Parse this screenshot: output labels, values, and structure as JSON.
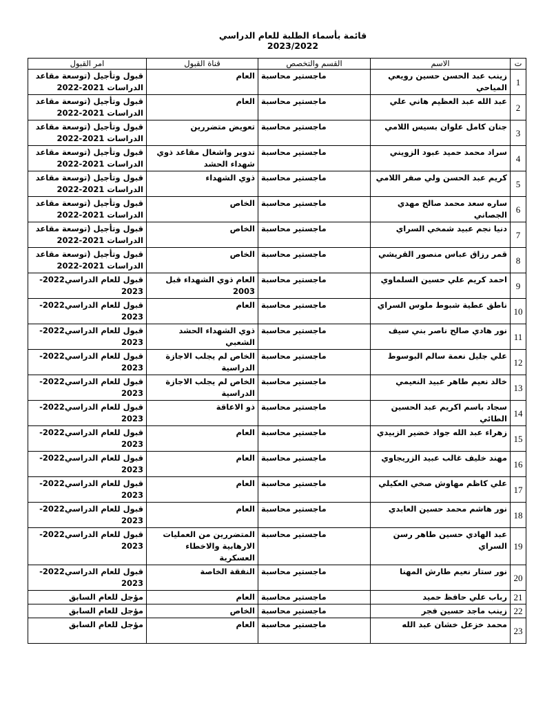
{
  "title": "قائمة بأسماء الطلبة للعام الدراسي 2023/2022",
  "table": {
    "headers": [
      "ت",
      "الاسم",
      "القسم والتخصص",
      "قناة القبول",
      "امر القبول"
    ],
    "rows": [
      [
        "1",
        "زينب عبد الحسن حسين رويعي المياحي",
        "ماجستير محاسبة",
        "العام",
        "قبول وتأجيل (توسعة مقاعد الدراسات 2021-2022"
      ],
      [
        "2",
        "عبد الله عبد العظيم هاني علي",
        "ماجستير محاسبة",
        "العام",
        "قبول وتأجيل (توسعة مقاعد الدراسات 2021-2022"
      ],
      [
        "3",
        "جنان كامل علوان بسيس اللامي",
        "ماجستير محاسبة",
        "تعويض متضررين",
        "قبول وتأجيل (توسعة مقاعد الدراسات 2021-2022"
      ],
      [
        "4",
        "سراد محمد حميد عبود الزويني",
        "ماجستير محاسبة",
        "تدوير واشغال مقاعد ذوي شهداء الحشد",
        "قبول وتأجيل (توسعة مقاعد الدراسات 2021-2022"
      ],
      [
        "5",
        "كريم عبد الحسن ولي صفر اللامي",
        "ماجستير محاسبة",
        "ذوي الشهداء",
        "قبول وتأجيل (توسعة مقاعد الدراسات 2021-2022"
      ],
      [
        "6",
        "ساره سعد محمد صالح مهدي الجصاني",
        "ماجستير محاسبة",
        "الخاص",
        "قبول وتأجيل (توسعة مقاعد الدراسات 2021-2022"
      ],
      [
        "7",
        "دنيا نجم عبيد شمخي السراي",
        "ماجستير محاسبة",
        "الخاص",
        "قبول وتأجيل (توسعة مقاعد الدراسات 2021-2022"
      ],
      [
        "8",
        "قمر رزاق عباس منصور القريشي",
        "ماجستير محاسبة",
        "الخاص",
        "قبول وتأجيل (توسعة مقاعد الدراسات 2021-2022"
      ],
      [
        "9",
        "احمد كريم علي حسين السلماوي",
        "ماجستير محاسبة",
        "العام ذوي الشهداء قبل 2003",
        "قبول للعام الدراسي2022-2023"
      ],
      [
        "10",
        "ناطق عطية شبوط ملوس السراي",
        "ماجستير محاسبة",
        "العام",
        "قبول للعام الدراسي2022-2023"
      ],
      [
        "11",
        "نور هادي صالح ناصر بني سيف",
        "ماجستير محاسبة",
        "ذوي الشهداء الحشد الشعبي",
        "قبول للعام الدراسي2022-2023"
      ],
      [
        "12",
        "علي جليل نعمة سالم البوسوط",
        "ماجستير محاسبة",
        "الخاص لم يجلب الاجازة الدراسية",
        "قبول للعام الدراسي2022-2023"
      ],
      [
        "13",
        "خالد نعيم طاهر عبيد النعيمي",
        "ماجستير محاسبة",
        "الخاص لم يجلب الاجازة الدراسية",
        "قبول للعام الدراسي2022-2023"
      ],
      [
        "14",
        "سجاد باسم اكريم عبد الحسين الطائي",
        "ماجستير محاسبة",
        "ذو الاعاقة",
        "قبول للعام الدراسي2022-2023"
      ],
      [
        "15",
        "زهراء عبد الله جواد خضير الزبيدي",
        "ماجستير محاسبة",
        "العام",
        "قبول للعام الدراسي2022-2023"
      ],
      [
        "16",
        "مهند خليف غالب عبيد الزريجاوي",
        "ماجستير محاسبة",
        "العام",
        "قبول للعام الدراسي2022-2023"
      ],
      [
        "17",
        "علي كاظم مهاوش صخي العكيلي",
        "ماجستير محاسبة",
        "العام",
        "قبول للعام الدراسي2022-2023"
      ],
      [
        "18",
        "نور هاشم محمد حسين العابدي",
        "ماجستير محاسبة",
        "العام",
        "قبول للعام الدراسي2022-2023"
      ],
      [
        "19",
        "عبد الهادي حسين طاهر رسن السراي",
        "ماجستير محاسبة",
        "المتضررين من العمليات الارهابية والاخطاء العسكرية",
        "قبول للعام الدراسي2022-2023"
      ],
      [
        "20",
        "نور ستار نعيم طارش المهنا",
        "ماجستير محاسبة",
        "النفقة الخاصة",
        "قبول للعام الدراسي2022-2023"
      ],
      [
        "21",
        "رباب علي حافظ حميد",
        "ماجستير محاسبة",
        "العام",
        "مؤجل للعام السابق"
      ],
      [
        "22",
        "زينب ماجد حسين فجر",
        "ماجستير محاسبة",
        "الخاص",
        "مؤجل للعام السابق"
      ],
      [
        "23",
        "محمد خزعل خشان عبد الله",
        "ماجستير محاسبة",
        "العام",
        "مؤجل للعام السابق"
      ]
    ]
  }
}
